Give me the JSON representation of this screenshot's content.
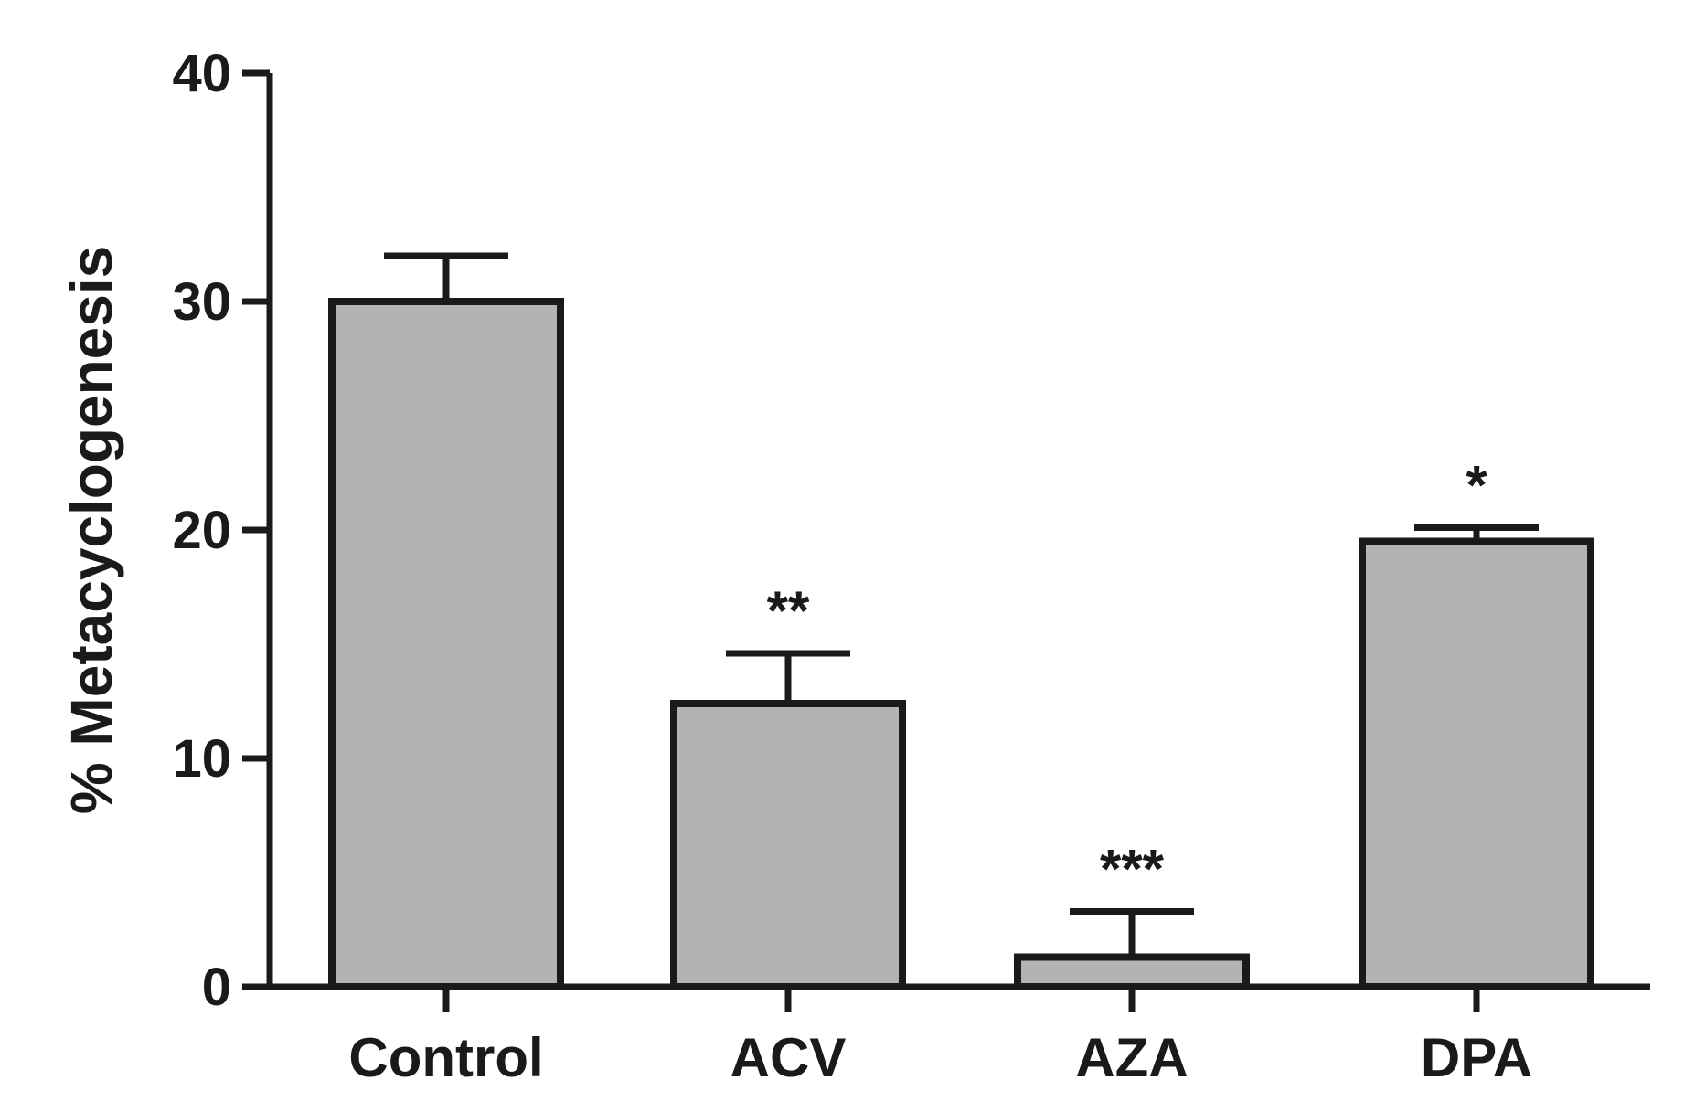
{
  "chart_data": {
    "type": "bar",
    "title": "",
    "xlabel": "",
    "ylabel": "% Metacyclogenesis",
    "categories": [
      "Control",
      "ACV",
      "AZA",
      "DPA"
    ],
    "values": [
      30.0,
      12.4,
      1.3,
      19.5
    ],
    "errors": [
      2.0,
      2.2,
      2.0,
      0.6
    ],
    "significance": [
      "",
      "**",
      "***",
      "*"
    ],
    "ylim": [
      0,
      40
    ],
    "yticks": [
      0,
      10,
      20,
      30,
      40
    ],
    "grid": false,
    "legend": null,
    "colors": {
      "bar_fill": "#b3b3b3",
      "bar_stroke": "#1a1a1a",
      "axis": "#1a1a1a",
      "text": "#1a1a1a"
    }
  }
}
